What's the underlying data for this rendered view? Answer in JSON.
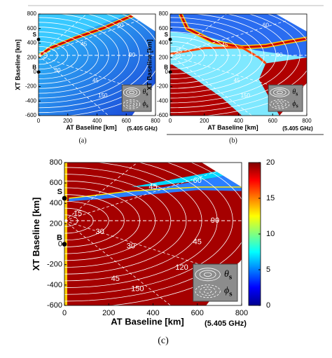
{
  "chart_data": [
    {
      "type": "heatmap",
      "caption": "(a)",
      "xlabel": "AT Baseline [km]",
      "ylabel": "XT Baseline [km]",
      "annotation": "(5.405 GHz)",
      "xlim": [
        0,
        800
      ],
      "ylim": [
        -600,
        800
      ],
      "xticks": [
        0,
        200,
        400,
        600,
        800
      ],
      "yticks": [
        -600,
        -400,
        -200,
        0,
        200,
        400,
        600,
        800
      ],
      "points": [
        "S",
        "B"
      ],
      "contour_labels": [
        30,
        45,
        60,
        90,
        45,
        150
      ],
      "legend": [
        {
          "symbol": "θ",
          "sub": "s"
        },
        {
          "symbol": "ϕ",
          "sub": "s"
        }
      ]
    },
    {
      "type": "heatmap",
      "caption": "(b)",
      "xlabel": "AT Baseline [km]",
      "ylabel": "XT Baseline [km]",
      "annotation": "(5.405 GHz)",
      "xlim": [
        0,
        800
      ],
      "ylim": [
        -600,
        800
      ],
      "xticks": [
        0,
        200,
        400,
        600,
        800
      ],
      "yticks": [
        -600,
        -400,
        -200,
        0,
        200,
        400,
        600,
        800
      ],
      "points": [
        "S",
        "B"
      ],
      "contour_labels": [
        15,
        45,
        60,
        90,
        45,
        150
      ],
      "legend": [
        {
          "symbol": "θ",
          "sub": "s"
        },
        {
          "symbol": "ϕ",
          "sub": "s"
        }
      ]
    },
    {
      "type": "heatmap",
      "caption": "(c)",
      "xlabel": "AT Baseline [km]",
      "ylabel": "XT Baseline [km]",
      "annotation": "(5.405 GHz)",
      "xlim": [
        0,
        800
      ],
      "ylim": [
        -600,
        800
      ],
      "xticks": [
        0,
        200,
        400,
        600,
        800
      ],
      "yticks": [
        -600,
        -400,
        -200,
        0,
        200,
        400,
        600,
        800
      ],
      "points": [
        "S",
        "B"
      ],
      "contour_labels": [
        15,
        30,
        45,
        60,
        90,
        45,
        30,
        120,
        45,
        150
      ],
      "legend": [
        {
          "symbol": "θ",
          "sub": "s"
        },
        {
          "symbol": "ϕ",
          "sub": "s"
        }
      ],
      "colorbar": {
        "lim": [
          0,
          20
        ],
        "ticks": [
          0,
          5,
          10,
          15,
          20
        ]
      }
    }
  ]
}
